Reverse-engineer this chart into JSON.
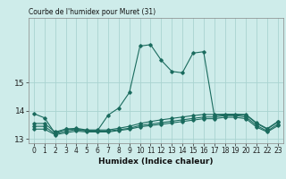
{
  "title": "Courbe de l'humidex pour Muret (31)",
  "xlabel": "Humidex (Indice chaleur)",
  "background_color": "#ceecea",
  "grid_color": "#aad4d0",
  "line_color": "#1a6b5e",
  "xlim": [
    -0.5,
    23.5
  ],
  "ylim": [
    12.85,
    17.3
  ],
  "yticks": [
    13,
    14,
    15
  ],
  "xticks": [
    0,
    1,
    2,
    3,
    4,
    5,
    6,
    7,
    8,
    9,
    10,
    11,
    12,
    13,
    14,
    15,
    16,
    17,
    18,
    19,
    20,
    21,
    22,
    23
  ],
  "series": [
    {
      "x": [
        0,
        1,
        2,
        3,
        4,
        5,
        6,
        7,
        8,
        9,
        10,
        11,
        12,
        13,
        14,
        15,
        16,
        17,
        18,
        19,
        20,
        21,
        22,
        23
      ],
      "y": [
        13.9,
        13.75,
        13.2,
        13.35,
        13.35,
        13.3,
        13.3,
        13.85,
        14.1,
        14.65,
        16.3,
        16.35,
        15.8,
        15.4,
        15.35,
        16.05,
        16.1,
        13.85,
        13.85,
        13.85,
        13.85,
        13.55,
        13.35,
        13.6
      ]
    },
    {
      "x": [
        0,
        1,
        2,
        3,
        4,
        5,
        6,
        7,
        8,
        9,
        10,
        11,
        12,
        13,
        14,
        15,
        16,
        17,
        18,
        19,
        20,
        21,
        22,
        23
      ],
      "y": [
        13.55,
        13.55,
        13.25,
        13.35,
        13.38,
        13.32,
        13.32,
        13.32,
        13.38,
        13.45,
        13.55,
        13.62,
        13.68,
        13.73,
        13.78,
        13.83,
        13.87,
        13.87,
        13.88,
        13.88,
        13.87,
        13.57,
        13.37,
        13.62
      ]
    },
    {
      "x": [
        0,
        1,
        2,
        3,
        4,
        5,
        6,
        7,
        8,
        9,
        10,
        11,
        12,
        13,
        14,
        15,
        16,
        17,
        18,
        19,
        20,
        21,
        22,
        23
      ],
      "y": [
        13.45,
        13.45,
        13.18,
        13.28,
        13.33,
        13.28,
        13.28,
        13.28,
        13.33,
        13.38,
        13.48,
        13.53,
        13.58,
        13.63,
        13.68,
        13.73,
        13.78,
        13.78,
        13.83,
        13.83,
        13.78,
        13.48,
        13.28,
        13.53
      ]
    },
    {
      "x": [
        0,
        1,
        2,
        3,
        4,
        5,
        6,
        7,
        8,
        9,
        10,
        11,
        12,
        13,
        14,
        15,
        16,
        17,
        18,
        19,
        20,
        21,
        22,
        23
      ],
      "y": [
        13.35,
        13.35,
        13.15,
        13.22,
        13.28,
        13.25,
        13.25,
        13.25,
        13.3,
        13.35,
        13.43,
        13.48,
        13.52,
        13.57,
        13.62,
        13.67,
        13.72,
        13.72,
        13.77,
        13.77,
        13.72,
        13.42,
        13.25,
        13.47
      ]
    }
  ]
}
